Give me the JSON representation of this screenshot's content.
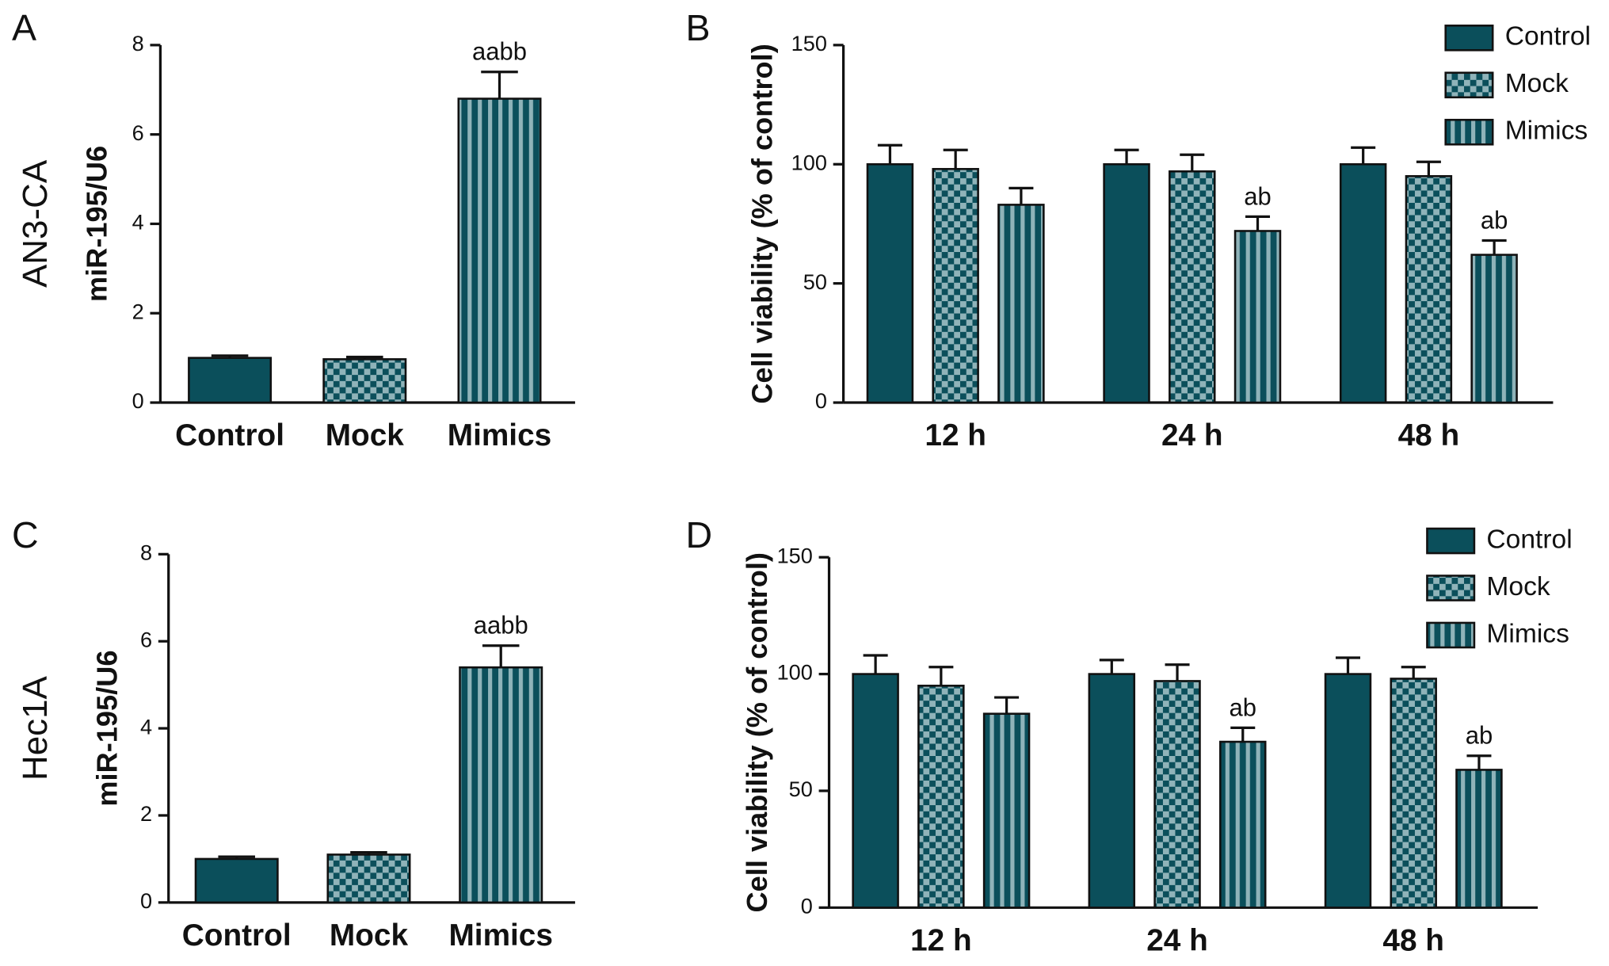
{
  "chart_data": [
    {
      "type": "bar",
      "panel": "A",
      "row_label": "AN3-CA",
      "y_label": "miR-195/U6",
      "categories": [
        "Control",
        "Mock",
        "Mimics"
      ],
      "values": [
        1.0,
        0.97,
        6.8
      ],
      "errors": [
        0.05,
        0.05,
        0.6
      ],
      "patterns": [
        "solid",
        "checker",
        "stripes"
      ],
      "annotations": [
        null,
        null,
        "aabb"
      ],
      "color": "#0b4f5b",
      "light_color": "#8fb3b9",
      "ylim": [
        0,
        8
      ],
      "yticks": [
        0,
        2,
        4,
        6,
        8
      ]
    },
    {
      "type": "grouped_bar",
      "panel": "B",
      "y_label": "Cell viability (% of control)",
      "categories": [
        "12 h",
        "24 h",
        "48 h"
      ],
      "legend": "upper right",
      "light_color": "#8fb3b9",
      "series": [
        {
          "name": "Control",
          "color": "#0b4f5b",
          "pattern": "solid",
          "values": [
            100,
            100,
            100
          ],
          "errors": [
            8,
            6,
            7
          ],
          "annotations": [
            null,
            null,
            null
          ]
        },
        {
          "name": "Mock",
          "color": "#0b4f5b",
          "pattern": "checker",
          "values": [
            98,
            97,
            95
          ],
          "errors": [
            8,
            7,
            6
          ],
          "annotations": [
            null,
            null,
            null
          ]
        },
        {
          "name": "Mimics",
          "color": "#0b4f5b",
          "pattern": "stripes",
          "values": [
            83,
            72,
            62
          ],
          "errors": [
            7,
            6,
            6
          ],
          "annotations": [
            null,
            "ab",
            "ab"
          ]
        }
      ],
      "ylim": [
        0,
        150
      ],
      "yticks": [
        0,
        50,
        100,
        150
      ]
    },
    {
      "type": "bar",
      "panel": "C",
      "row_label": "Hec1A",
      "y_label": "miR-195/U6",
      "categories": [
        "Control",
        "Mock",
        "Mimics"
      ],
      "values": [
        1.0,
        1.1,
        5.4
      ],
      "errors": [
        0.05,
        0.05,
        0.5
      ],
      "patterns": [
        "solid",
        "checker",
        "stripes"
      ],
      "annotations": [
        null,
        null,
        "aabb"
      ],
      "color": "#0b4f5b",
      "light_color": "#8fb3b9",
      "ylim": [
        0,
        8
      ],
      "yticks": [
        0,
        2,
        4,
        6,
        8
      ]
    },
    {
      "type": "grouped_bar",
      "panel": "D",
      "y_label": "Cell viability (% of control)",
      "categories": [
        "12 h",
        "24 h",
        "48 h"
      ],
      "legend": "upper right",
      "light_color": "#8fb3b9",
      "series": [
        {
          "name": "Control",
          "color": "#0b4f5b",
          "pattern": "solid",
          "values": [
            100,
            100,
            100
          ],
          "errors": [
            8,
            6,
            7
          ],
          "annotations": [
            null,
            null,
            null
          ]
        },
        {
          "name": "Mock",
          "color": "#0b4f5b",
          "pattern": "checker",
          "values": [
            95,
            97,
            98
          ],
          "errors": [
            8,
            7,
            5
          ],
          "annotations": [
            null,
            null,
            null
          ]
        },
        {
          "name": "Mimics",
          "color": "#0b4f5b",
          "pattern": "stripes",
          "values": [
            83,
            71,
            59
          ],
          "errors": [
            7,
            6,
            6
          ],
          "annotations": [
            null,
            "ab",
            "ab"
          ]
        }
      ],
      "ylim": [
        0,
        150
      ],
      "yticks": [
        0,
        50,
        100,
        150
      ]
    }
  ]
}
